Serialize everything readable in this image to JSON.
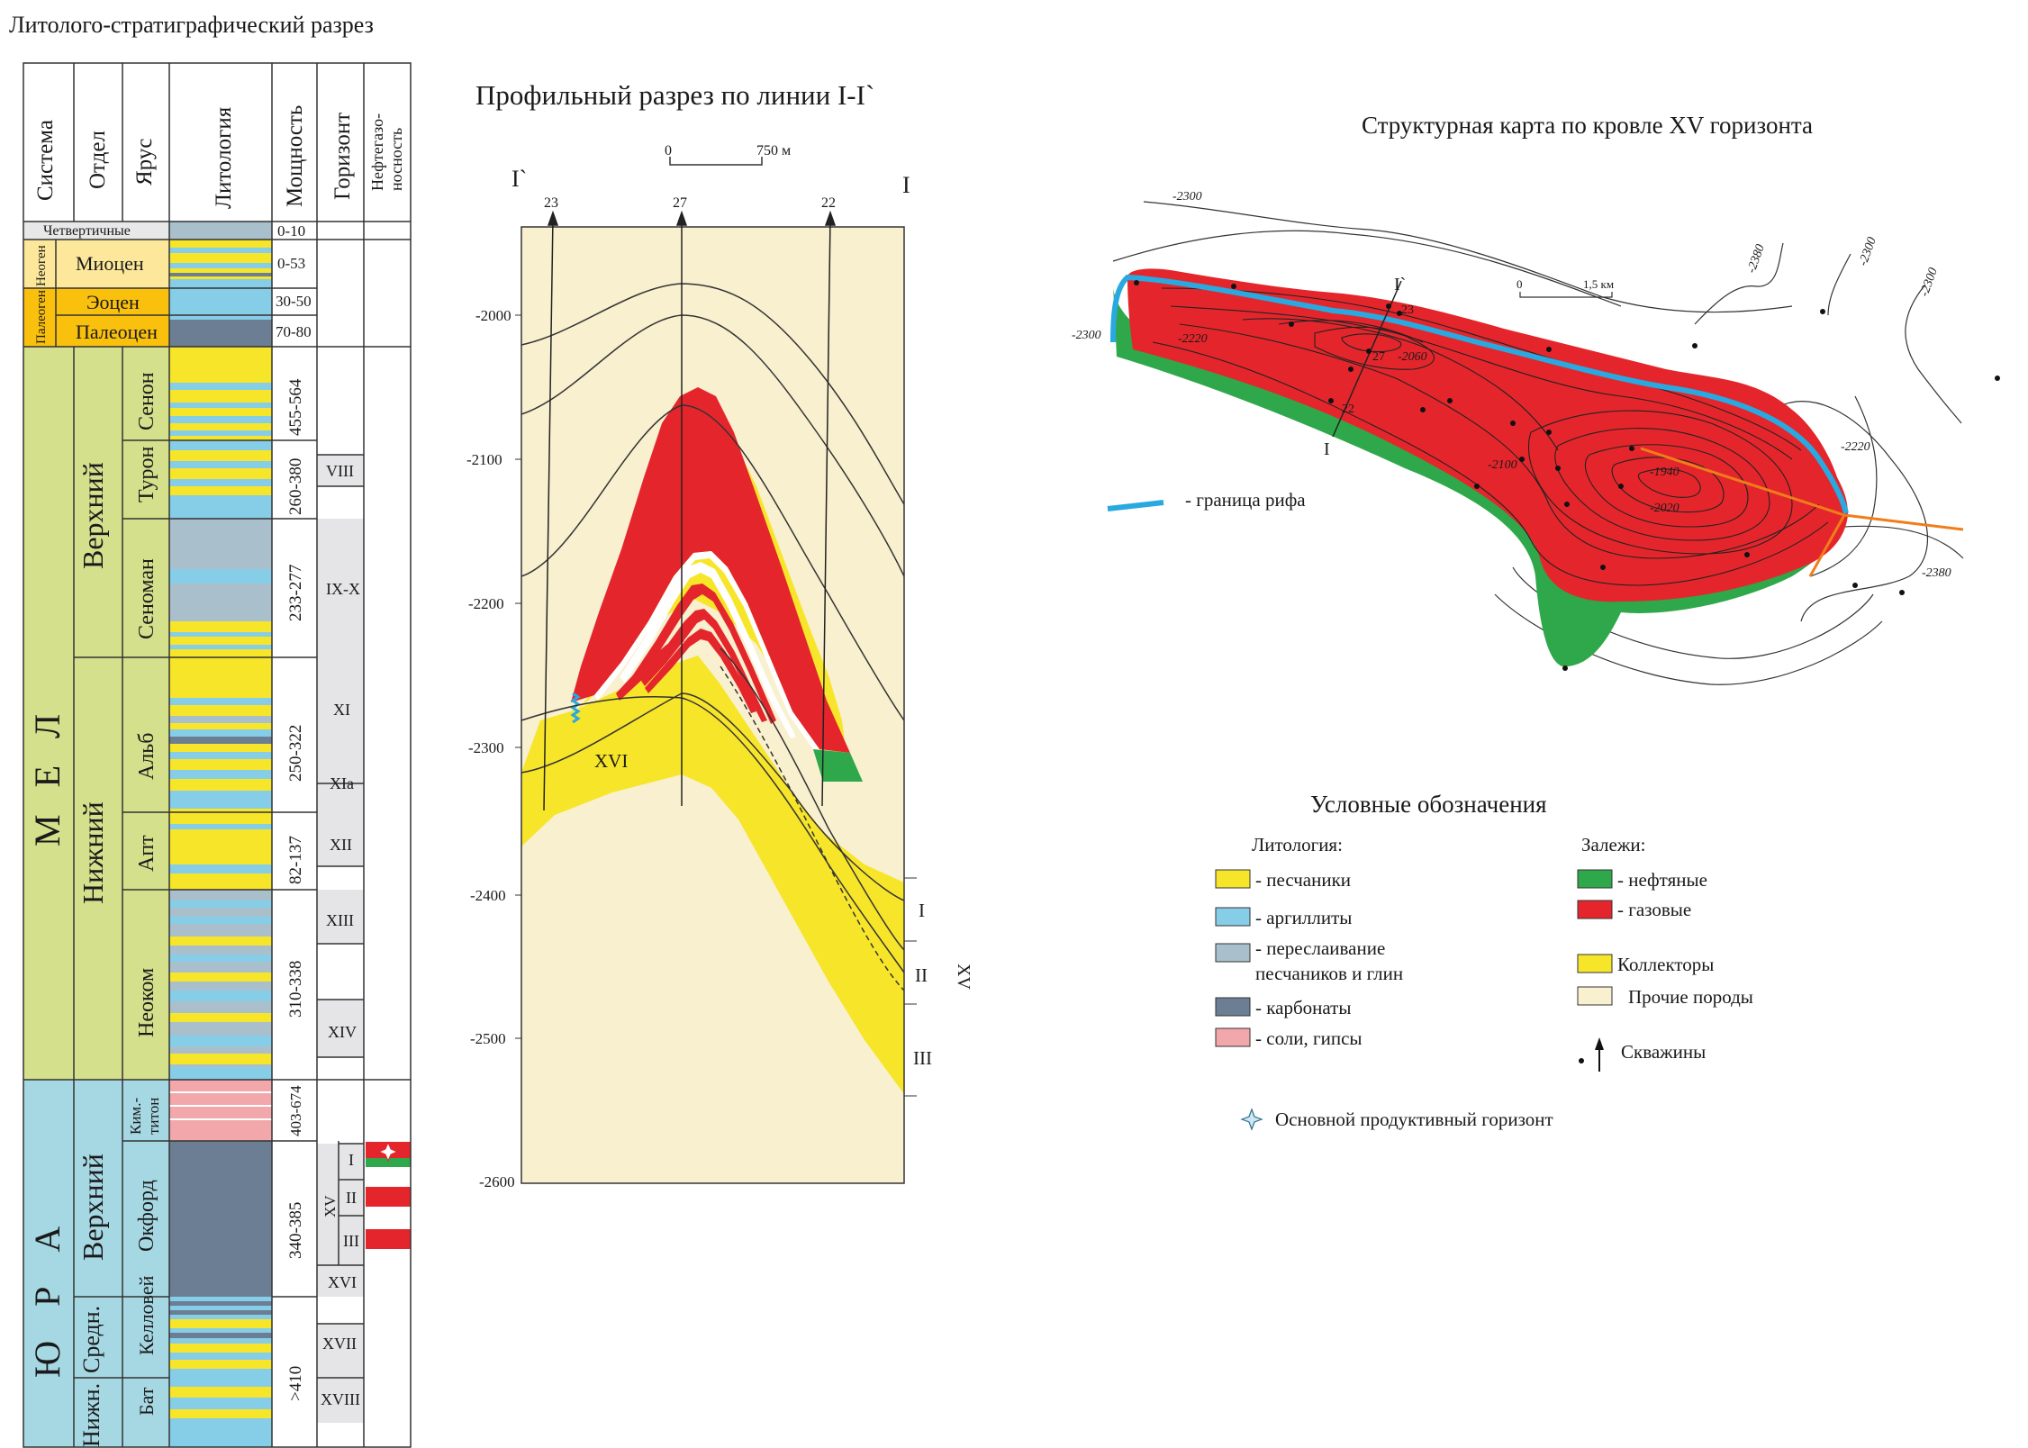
{
  "colors": {
    "sandstone": "#f7e52a",
    "argillite": "#86cde8",
    "interbed": "#a9c0cc",
    "carbonate": "#6b7e93",
    "salt": "#f2a7aa",
    "gas": "#e4262c",
    "oil": "#2ea84a",
    "other": "#f8f0cf",
    "reef": "#29a9e0",
    "upper_cret": "#d4e08c",
    "lower_cret": "#d4e08c",
    "jura": "#a6d8e4",
    "neogene": "#fce79a",
    "paleogene": "#f9c10e",
    "horizon_bg": "#e5e5e7",
    "quaternary": "#e8e8e8",
    "fault": "#f07d1a"
  },
  "strat": {
    "title": "Литолого-стратиграфический разрез",
    "headers": {
      "system": "Система",
      "series": "Отдел",
      "stage": "Ярус",
      "lithology": "Литология",
      "thickness": "Мощность",
      "horizon": "Горизонт",
      "oilgas_1": "Нефтегазо-",
      "oilgas_2": "носность"
    },
    "quaternary": "Четвертичные",
    "neogene": "Неоген",
    "miocene": "Миоцен",
    "paleogene": "Палеоген",
    "eocene": "Эоцен",
    "paleocene": "Палеоцен",
    "cretaceous": "М Е Л",
    "upper": "Верхний",
    "lower": "Нижний",
    "senon": "Сенон",
    "turon": "Турон",
    "cenoman": "Сеноман",
    "alb": "Альб",
    "apt": "Апт",
    "neocom": "Неоком",
    "jurassic": "Ю Р А",
    "kim_1": "Ким.-",
    "kim_2": "титон",
    "oxford": "Окфорд",
    "callov": "Келловей",
    "bat": "Бат",
    "sredn": "Средн.",
    "nizhn": "Нижн.",
    "thickness": [
      "0-10",
      "0-53",
      "30-50",
      "70-80",
      "455-564",
      "260-380",
      "233-277",
      "250-322",
      "82-137",
      "310-338",
      "403-674",
      "340-385",
      ">410"
    ],
    "horizons": [
      "VIII",
      "IX-X",
      "XI",
      "XIa",
      "XII",
      "XIII",
      "XIV",
      "I",
      "II",
      "III",
      "XV",
      "XVI",
      "XVII",
      "XVIII"
    ]
  },
  "profile": {
    "title": "Профильный разрез по линии I-I`",
    "scale_0": "0",
    "scale_750": "750 м",
    "end_left": "I`",
    "end_right": "I",
    "wells": [
      "23",
      "27",
      "22"
    ],
    "depths": [
      "-2000",
      "-2100",
      "-2200",
      "-2300",
      "-2400",
      "-2500",
      "-2600"
    ],
    "horizon_label": "XVI",
    "right_labels": [
      "I",
      "II",
      "III"
    ],
    "xv": "XV"
  },
  "map": {
    "title": "Структурная карта по кровле XV горизонта",
    "scale_0": "0",
    "scale_15": "1,5 км",
    "contours": [
      "-2300",
      "-2300",
      "-2380",
      "-2300",
      "-2300",
      "-2220",
      "-2060",
      "-2100",
      "-1940",
      "-2020",
      "-2220",
      "-2380"
    ],
    "wells": [
      "23",
      "27",
      "22"
    ],
    "line_start": "I`",
    "line_end": "I",
    "reef_label": "- граница рифа"
  },
  "legend": {
    "title": "Условные обозначения",
    "lith_header": "Литология:",
    "items": [
      "- песчаники",
      "- аргиллиты",
      "- переслаивание",
      "песчаников и глин",
      "- карбонаты",
      "- соли, гипсы"
    ],
    "dep_header": "Залежи:",
    "oil": "- нефтяные",
    "gas": "- газовые",
    "collectors": "Коллекторы",
    "other": "Прочие породы",
    "wells": "Скважины",
    "main_horizon": "Основной продуктивный горизонт"
  }
}
